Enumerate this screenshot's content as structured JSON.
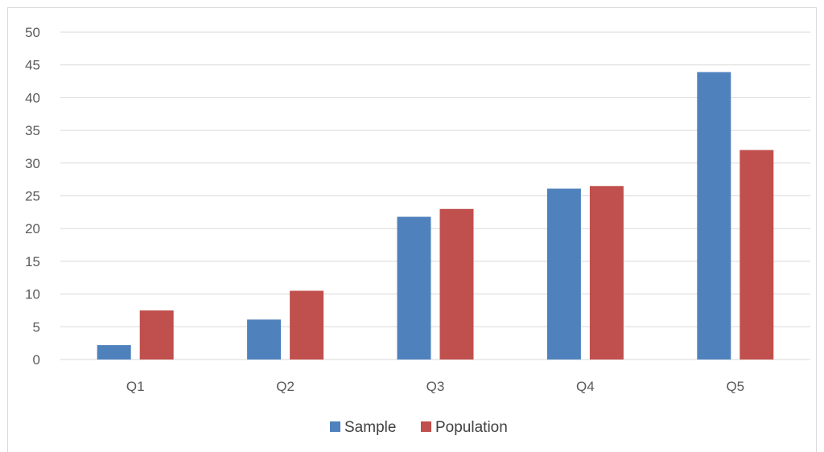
{
  "chart_data": {
    "type": "bar",
    "categories": [
      "Q1",
      "Q2",
      "Q3",
      "Q4",
      "Q5"
    ],
    "series": [
      {
        "name": "Sample",
        "values": [
          2.2,
          6.1,
          21.8,
          26.1,
          43.9
        ],
        "color": "#4f81bd"
      },
      {
        "name": "Population",
        "values": [
          7.5,
          10.5,
          23.0,
          26.5,
          32.0
        ],
        "color": "#c0504d"
      }
    ],
    "y_ticks": [
      "0",
      "5",
      "10",
      "15",
      "20",
      "25",
      "30",
      "35",
      "40",
      "45",
      "50"
    ],
    "ylim": [
      0,
      50
    ],
    "y_tick_step": 5,
    "grid": true,
    "legend_position": "bottom",
    "axis_color": "#d9d9d9",
    "grid_color": "#d9d9d9"
  }
}
